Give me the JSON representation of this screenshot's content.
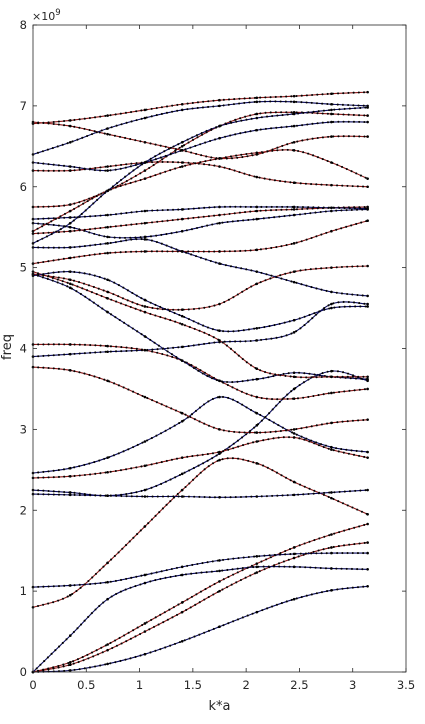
{
  "chart_data": {
    "type": "line",
    "title": "",
    "xlabel": "k*a",
    "ylabel": "freq",
    "y_exponent_label": "×10",
    "y_exponent_power": "9",
    "xlim": [
      0,
      3.5
    ],
    "ylim": [
      0,
      8
    ],
    "x_ticks": [
      0,
      0.5,
      1,
      1.5,
      2,
      2.5,
      3,
      3.5
    ],
    "x_tick_labels": [
      "0",
      "0.5",
      "1",
      "1.5",
      "2",
      "2.5",
      "3",
      "3.5"
    ],
    "y_ticks": [
      0,
      1,
      2,
      3,
      4,
      5,
      6,
      7,
      8
    ],
    "y_tick_labels": [
      "0",
      "1",
      "2",
      "3",
      "4",
      "5",
      "6",
      "7",
      "8"
    ],
    "grid": false,
    "legend": "none",
    "colors": {
      "line_primary": "#8B1A1A",
      "line_secondary": "#0B0B5C",
      "marker": "#000000",
      "axis": "#262626",
      "background": "#ffffff"
    },
    "x": [
      0,
      0.35,
      0.7,
      1.05,
      1.4,
      1.75,
      2.1,
      2.45,
      2.8,
      3.14
    ],
    "series": [
      {
        "color": "line_secondary",
        "values": [
          0.0,
          0.02,
          0.1,
          0.22,
          0.38,
          0.56,
          0.74,
          0.9,
          1.01,
          1.06
        ]
      },
      {
        "color": "line_primary",
        "values": [
          0.0,
          0.09,
          0.27,
          0.5,
          0.74,
          1.0,
          1.23,
          1.41,
          1.54,
          1.6
        ]
      },
      {
        "color": "line_primary",
        "values": [
          0.0,
          0.12,
          0.34,
          0.6,
          0.86,
          1.12,
          1.34,
          1.54,
          1.7,
          1.83
        ]
      },
      {
        "color": "line_secondary",
        "values": [
          0.0,
          0.45,
          0.9,
          1.1,
          1.2,
          1.25,
          1.3,
          1.3,
          1.28,
          1.27
        ]
      },
      {
        "color": "line_secondary",
        "values": [
          1.05,
          1.07,
          1.11,
          1.2,
          1.3,
          1.38,
          1.43,
          1.46,
          1.47,
          1.47
        ]
      },
      {
        "color": "line_primary",
        "values": [
          0.8,
          0.95,
          1.35,
          1.8,
          2.25,
          2.62,
          2.58,
          2.35,
          2.15,
          1.95
        ]
      },
      {
        "color": "line_secondary",
        "values": [
          2.2,
          2.19,
          2.18,
          2.17,
          2.17,
          2.16,
          2.17,
          2.19,
          2.22,
          2.25
        ]
      },
      {
        "color": "line_secondary",
        "values": [
          2.25,
          2.22,
          2.18,
          2.25,
          2.45,
          2.7,
          3.05,
          3.5,
          3.72,
          3.6
        ]
      },
      {
        "color": "line_secondary",
        "values": [
          2.46,
          2.52,
          2.65,
          2.85,
          3.1,
          3.4,
          3.2,
          2.95,
          2.78,
          2.72
        ]
      },
      {
        "color": "line_primary",
        "values": [
          2.4,
          2.42,
          2.47,
          2.55,
          2.65,
          2.72,
          2.85,
          2.9,
          2.75,
          2.65
        ]
      },
      {
        "color": "line_primary",
        "values": [
          3.77,
          3.73,
          3.6,
          3.4,
          3.2,
          3.0,
          2.96,
          3.0,
          3.08,
          3.12
        ]
      },
      {
        "color": "line_secondary",
        "values": [
          3.9,
          3.93,
          3.96,
          3.98,
          4.02,
          4.08,
          4.1,
          4.2,
          4.55,
          4.55
        ]
      },
      {
        "color": "line_primary",
        "values": [
          4.05,
          4.05,
          4.03,
          3.98,
          3.85,
          3.6,
          3.4,
          3.38,
          3.45,
          3.5
        ]
      },
      {
        "color": "line_secondary",
        "values": [
          4.92,
          4.75,
          4.45,
          4.15,
          3.85,
          3.6,
          3.62,
          3.7,
          3.65,
          3.62
        ]
      },
      {
        "color": "line_primary",
        "values": [
          4.95,
          4.8,
          4.62,
          4.45,
          4.3,
          4.1,
          3.75,
          3.65,
          3.65,
          3.65
        ]
      },
      {
        "color": "line_primary",
        "values": [
          4.92,
          4.85,
          4.7,
          4.52,
          4.48,
          4.55,
          4.8,
          4.95,
          5.0,
          5.02
        ]
      },
      {
        "color": "line_secondary",
        "values": [
          4.9,
          4.95,
          4.85,
          4.6,
          4.4,
          4.22,
          4.25,
          4.35,
          4.5,
          4.52
        ]
      },
      {
        "color": "line_primary",
        "values": [
          5.05,
          5.12,
          5.18,
          5.2,
          5.2,
          5.2,
          5.22,
          5.3,
          5.45,
          5.58
        ]
      },
      {
        "color": "line_secondary",
        "values": [
          5.25,
          5.25,
          5.3,
          5.35,
          5.2,
          5.05,
          4.95,
          4.82,
          4.7,
          4.65
        ]
      },
      {
        "color": "line_secondary",
        "values": [
          5.55,
          5.5,
          5.38,
          5.38,
          5.45,
          5.55,
          5.6,
          5.65,
          5.7,
          5.72
        ]
      },
      {
        "color": "line_primary",
        "values": [
          5.42,
          5.45,
          5.5,
          5.55,
          5.6,
          5.65,
          5.7,
          5.72,
          5.74,
          5.75
        ]
      },
      {
        "color": "line_secondary",
        "values": [
          5.6,
          5.62,
          5.65,
          5.7,
          5.72,
          5.75,
          5.75,
          5.75,
          5.74,
          5.73
        ]
      },
      {
        "color": "line_primary",
        "values": [
          5.75,
          5.78,
          5.95,
          6.2,
          6.5,
          6.75,
          6.9,
          6.92,
          6.9,
          6.88
        ]
      },
      {
        "color": "line_primary",
        "values": [
          6.2,
          6.2,
          6.25,
          6.3,
          6.3,
          6.25,
          6.12,
          6.05,
          6.02,
          6.0
        ]
      },
      {
        "color": "line_secondary",
        "values": [
          6.3,
          6.25,
          6.2,
          6.3,
          6.45,
          6.6,
          6.7,
          6.75,
          6.8,
          6.8
        ]
      },
      {
        "color": "line_primary",
        "values": [
          5.45,
          5.7,
          5.95,
          6.1,
          6.25,
          6.35,
          6.42,
          6.45,
          6.3,
          6.1
        ]
      },
      {
        "color": "line_secondary",
        "values": [
          5.3,
          5.55,
          5.95,
          6.3,
          6.55,
          6.75,
          6.85,
          6.9,
          6.95,
          6.98
        ]
      },
      {
        "color": "line_primary",
        "values": [
          6.8,
          6.75,
          6.65,
          6.55,
          6.45,
          6.35,
          6.4,
          6.55,
          6.62,
          6.62
        ]
      },
      {
        "color": "line_secondary",
        "values": [
          6.4,
          6.55,
          6.72,
          6.85,
          6.95,
          7.0,
          7.05,
          7.05,
          7.02,
          7.0
        ]
      },
      {
        "color": "line_primary",
        "values": [
          6.78,
          6.82,
          6.88,
          6.95,
          7.02,
          7.07,
          7.1,
          7.12,
          7.15,
          7.17
        ]
      }
    ]
  }
}
